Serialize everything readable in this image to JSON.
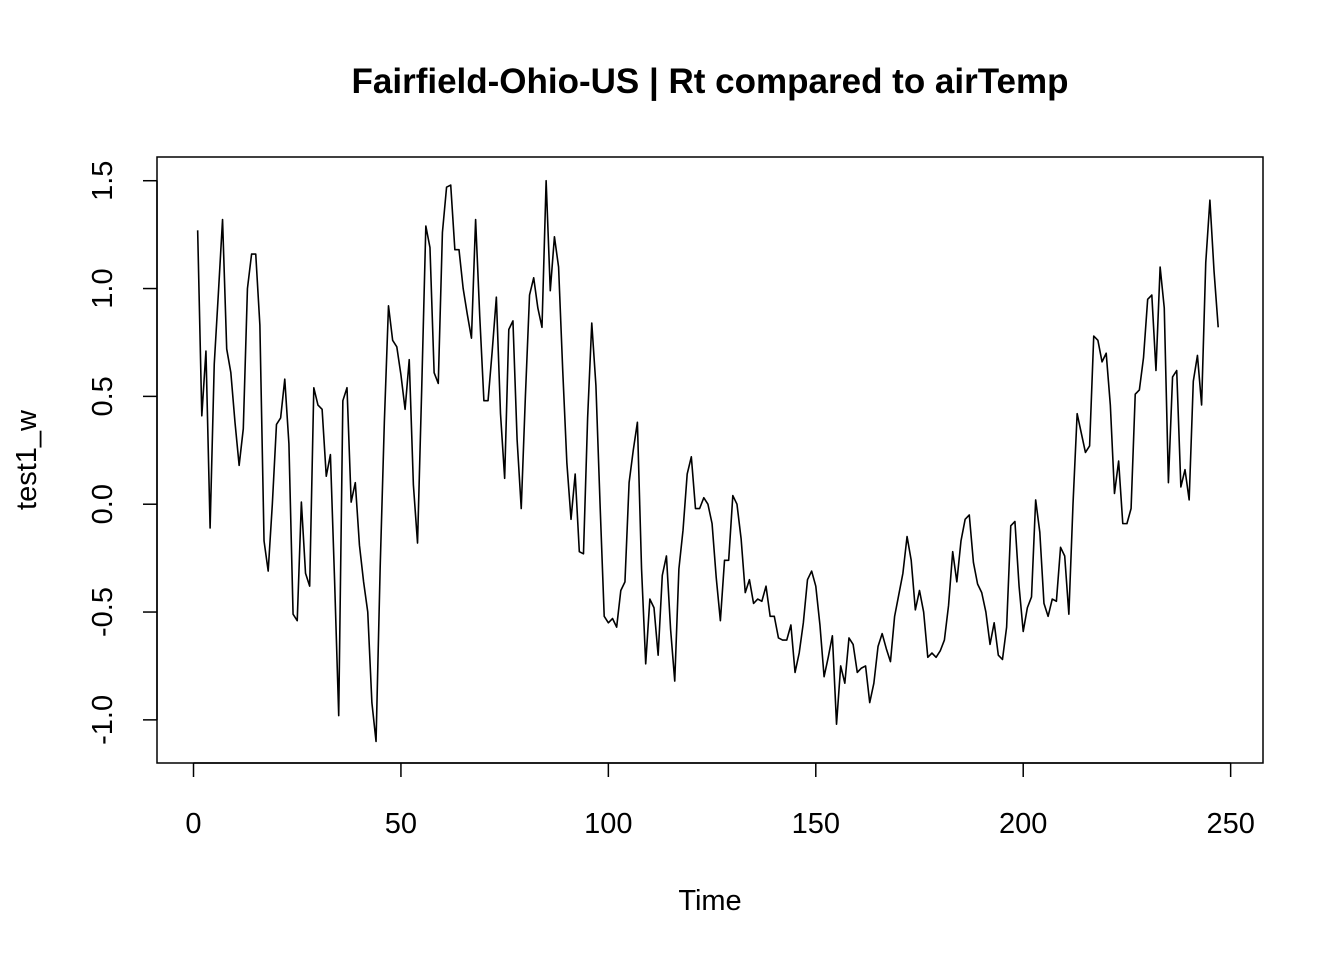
{
  "chart_data": {
    "type": "line",
    "title": "Fairfield-Ohio-US | Rt compared to airTemp",
    "xlabel": "Time",
    "ylabel": "test1_w",
    "xlim": [
      -8.8,
      257.8
    ],
    "ylim": [
      -1.2,
      1.61
    ],
    "x_ticks": [
      0,
      50,
      100,
      150,
      200,
      250
    ],
    "x_tick_labels": [
      "0",
      "50",
      "100",
      "150",
      "200",
      "250"
    ],
    "y_ticks": [
      -1.0,
      -0.5,
      0.0,
      0.5,
      1.0,
      1.5
    ],
    "y_tick_labels": [
      "-1.0",
      "-0.5",
      "0.0",
      "0.5",
      "1.0",
      "1.5"
    ],
    "grid": false,
    "legend": "none",
    "line_color": "#000000",
    "x_start": 1,
    "series": [
      {
        "values": [
          1.27,
          0.41,
          0.71,
          -0.11,
          0.65,
          0.98,
          1.32,
          0.72,
          0.61,
          0.38,
          0.18,
          0.35,
          1.0,
          1.16,
          1.16,
          0.83,
          -0.17,
          -0.31,
          0.0,
          0.37,
          0.4,
          0.58,
          0.28,
          -0.51,
          -0.54,
          0.01,
          -0.32,
          -0.38,
          0.54,
          0.46,
          0.44,
          0.13,
          0.23,
          -0.35,
          -0.98,
          0.48,
          0.54,
          0.01,
          0.1,
          -0.19,
          -0.36,
          -0.5,
          -0.92,
          -1.1,
          -0.29,
          0.38,
          0.92,
          0.76,
          0.73,
          0.6,
          0.44,
          0.67,
          0.09,
          -0.18,
          0.53,
          1.29,
          1.19,
          0.61,
          0.56,
          1.26,
          1.47,
          1.48,
          1.18,
          1.18,
          1.0,
          0.88,
          0.77,
          1.32,
          0.87,
          0.48,
          0.48,
          0.71,
          0.96,
          0.42,
          0.12,
          0.81,
          0.85,
          0.3,
          -0.02,
          0.5,
          0.97,
          1.05,
          0.91,
          0.82,
          1.5,
          0.99,
          1.24,
          1.1,
          0.62,
          0.19,
          -0.07,
          0.14,
          -0.22,
          -0.23,
          0.4,
          0.84,
          0.55,
          0.0,
          -0.52,
          -0.55,
          -0.53,
          -0.57,
          -0.4,
          -0.36,
          0.1,
          0.25,
          0.38,
          -0.3,
          -0.74,
          -0.44,
          -0.48,
          -0.7,
          -0.33,
          -0.24,
          -0.58,
          -0.82,
          -0.3,
          -0.12,
          0.14,
          0.22,
          -0.02,
          -0.02,
          0.03,
          0.0,
          -0.09,
          -0.34,
          -0.54,
          -0.26,
          -0.26,
          0.04,
          0.0,
          -0.16,
          -0.41,
          -0.35,
          -0.46,
          -0.44,
          -0.45,
          -0.38,
          -0.52,
          -0.52,
          -0.62,
          -0.63,
          -0.63,
          -0.56,
          -0.78,
          -0.69,
          -0.55,
          -0.35,
          -0.31,
          -0.38,
          -0.56,
          -0.8,
          -0.71,
          -0.61,
          -1.02,
          -0.75,
          -0.83,
          -0.62,
          -0.65,
          -0.78,
          -0.76,
          -0.75,
          -0.92,
          -0.83,
          -0.66,
          -0.6,
          -0.67,
          -0.73,
          -0.52,
          -0.42,
          -0.32,
          -0.15,
          -0.26,
          -0.49,
          -0.4,
          -0.5,
          -0.71,
          -0.69,
          -0.71,
          -0.68,
          -0.63,
          -0.47,
          -0.22,
          -0.36,
          -0.17,
          -0.07,
          -0.05,
          -0.27,
          -0.37,
          -0.41,
          -0.5,
          -0.65,
          -0.55,
          -0.7,
          -0.72,
          -0.57,
          -0.1,
          -0.08,
          -0.38,
          -0.59,
          -0.48,
          -0.43,
          0.02,
          -0.13,
          -0.46,
          -0.52,
          -0.44,
          -0.45,
          -0.2,
          -0.24,
          -0.51,
          0.0,
          0.42,
          0.33,
          0.24,
          0.27,
          0.78,
          0.76,
          0.66,
          0.7,
          0.46,
          0.05,
          0.2,
          -0.09,
          -0.09,
          -0.02,
          0.51,
          0.53,
          0.68,
          0.95,
          0.97,
          0.62,
          1.1,
          0.91,
          0.1,
          0.59,
          0.62,
          0.08,
          0.16,
          0.02,
          0.57,
          0.69,
          0.46,
          1.12,
          1.41,
          1.08,
          0.82
        ]
      }
    ]
  }
}
